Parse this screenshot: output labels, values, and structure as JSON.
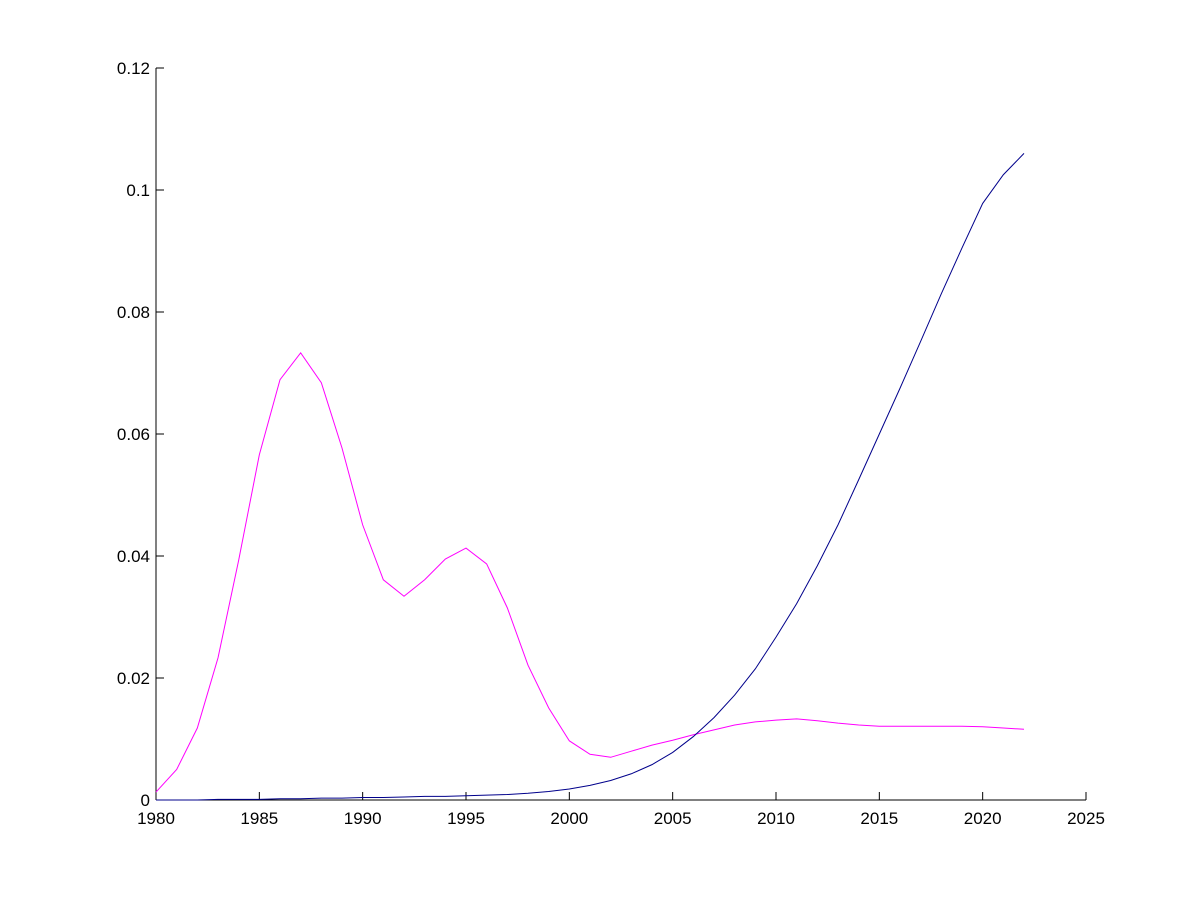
{
  "chart_data": {
    "type": "line",
    "x": [
      1980,
      1981,
      1982,
      1983,
      1984,
      1985,
      1986,
      1987,
      1988,
      1989,
      1990,
      1991,
      1992,
      1993,
      1994,
      1995,
      1996,
      1997,
      1998,
      1999,
      2000,
      2001,
      2002,
      2003,
      2004,
      2005,
      2006,
      2007,
      2008,
      2009,
      2010,
      2011,
      2012,
      2013,
      2014,
      2015,
      2016,
      2017,
      2018,
      2019,
      2020,
      2021,
      2022
    ],
    "series": [
      {
        "color": "#ff00ff",
        "values": [
          0.0013,
          0.005,
          0.0118,
          0.0233,
          0.0393,
          0.0566,
          0.0689,
          0.0733,
          0.0684,
          0.0577,
          0.0451,
          0.0361,
          0.0334,
          0.0361,
          0.0395,
          0.0413,
          0.0387,
          0.0315,
          0.0221,
          0.0151,
          0.0097,
          0.0075,
          0.007,
          0.008,
          0.009,
          0.0098,
          0.0107,
          0.0115,
          0.0123,
          0.0128,
          0.0131,
          0.0133,
          0.013,
          0.0126,
          0.0123,
          0.0121,
          0.0121,
          0.0121,
          0.0121,
          0.0121,
          0.012,
          0.0118,
          0.0116
        ]
      },
      {
        "color": "#00008b",
        "values": [
          0,
          0,
          0,
          0.0001,
          0.0001,
          0.0001,
          0.0002,
          0.0002,
          0.0003,
          0.0003,
          0.0004,
          0.0004,
          0.0005,
          0.0006,
          0.0006,
          0.0007,
          0.0008,
          0.0009,
          0.0011,
          0.0014,
          0.0018,
          0.0024,
          0.0032,
          0.0043,
          0.0058,
          0.0078,
          0.0104,
          0.0135,
          0.0172,
          0.0215,
          0.0267,
          0.0322,
          0.0384,
          0.0451,
          0.0525,
          0.06,
          0.0675,
          0.0752,
          0.083,
          0.0905,
          0.0978,
          0.1025,
          0.106
        ]
      }
    ],
    "xlim": [
      1980,
      2025
    ],
    "xticks": [
      1980,
      1985,
      1990,
      1995,
      2000,
      2005,
      2010,
      2015,
      2020,
      2025
    ],
    "ylim": [
      0,
      0.12
    ],
    "yticks": [
      0,
      0.02,
      0.04,
      0.06,
      0.08,
      0.1,
      0.12
    ],
    "grid": false
  }
}
